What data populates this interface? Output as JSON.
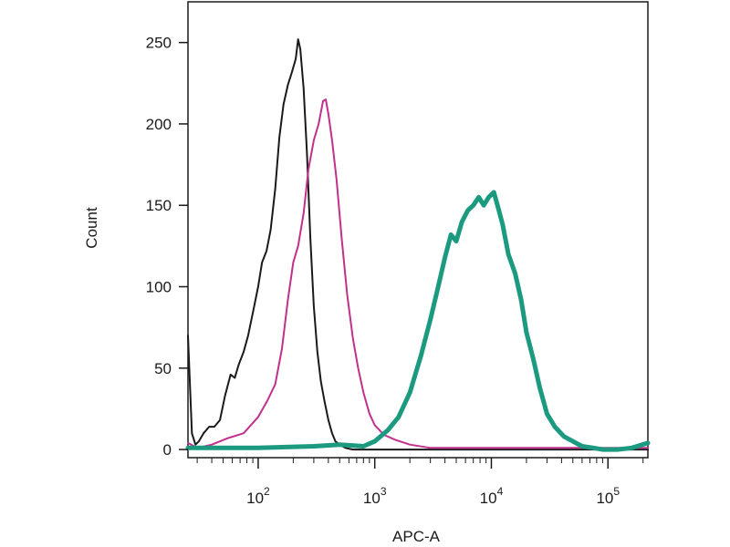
{
  "chart_data": {
    "type": "line",
    "title": "",
    "xlabel": "APC-A",
    "ylabel": "Count",
    "x_scale": "log",
    "xlim": [
      25,
      220000
    ],
    "ylim": [
      -5,
      275
    ],
    "grid": false,
    "x_ticks": [
      {
        "value": 100,
        "base": "10",
        "exp": "2"
      },
      {
        "value": 1000,
        "base": "10",
        "exp": "3"
      },
      {
        "value": 10000,
        "base": "10",
        "exp": "4"
      },
      {
        "value": 100000,
        "base": "10",
        "exp": "5"
      }
    ],
    "y_ticks": [
      0,
      50,
      100,
      150,
      200,
      250
    ],
    "series": [
      {
        "color": "#1a1a1a",
        "stroke": 2,
        "x": [
          25,
          27,
          29,
          31,
          34,
          38,
          42,
          47,
          52,
          58,
          63,
          68,
          75,
          82,
          90,
          100,
          108,
          118,
          128,
          140,
          152,
          165,
          180,
          195,
          210,
          220,
          230,
          245,
          262,
          280,
          300,
          322,
          345,
          370,
          400,
          430,
          460,
          500,
          560,
          650,
          800,
          1000,
          1300,
          2000,
          5000,
          20000,
          100000,
          220000
        ],
        "y": [
          70,
          10,
          3,
          5,
          10,
          14,
          14,
          18,
          33,
          46,
          44,
          52,
          60,
          70,
          84,
          100,
          115,
          122,
          135,
          160,
          192,
          212,
          224,
          232,
          240,
          252,
          246,
          222,
          182,
          130,
          88,
          60,
          42,
          30,
          18,
          10,
          5,
          3,
          1,
          0,
          0,
          0,
          0,
          0,
          0,
          0,
          0,
          0
        ]
      },
      {
        "color": "#c0308c",
        "stroke": 2,
        "x": [
          25,
          30,
          40,
          55,
          75,
          100,
          120,
          140,
          160,
          180,
          200,
          220,
          245,
          270,
          300,
          330,
          360,
          380,
          400,
          430,
          470,
          520,
          580,
          650,
          720,
          800,
          900,
          1000,
          1200,
          1500,
          2000,
          3000,
          5000,
          10000,
          50000,
          220000
        ],
        "y": [
          4,
          1,
          3,
          7,
          10,
          20,
          30,
          40,
          62,
          92,
          115,
          125,
          145,
          172,
          190,
          200,
          214,
          215,
          206,
          190,
          166,
          130,
          95,
          68,
          50,
          35,
          22,
          15,
          9,
          6,
          3,
          1,
          1,
          1,
          1,
          1
        ]
      },
      {
        "color": "#1b9a80",
        "stroke": 5,
        "x": [
          25,
          100,
          300,
          500,
          800,
          1000,
          1300,
          1600,
          2000,
          2500,
          3000,
          3500,
          4000,
          4500,
          5000,
          5600,
          6300,
          7000,
          7800,
          8600,
          9500,
          10500,
          11500,
          12500,
          14000,
          16000,
          18000,
          20000,
          23000,
          26000,
          30000,
          35000,
          42000,
          50000,
          60000,
          75000,
          90000,
          120000,
          160000,
          220000
        ],
        "y": [
          1,
          1,
          2,
          3,
          2,
          5,
          12,
          20,
          35,
          58,
          80,
          100,
          118,
          132,
          128,
          140,
          147,
          150,
          155,
          150,
          155,
          158,
          148,
          138,
          120,
          108,
          92,
          72,
          55,
          38,
          22,
          14,
          8,
          5,
          2,
          1,
          0,
          0,
          1,
          4
        ]
      }
    ]
  }
}
